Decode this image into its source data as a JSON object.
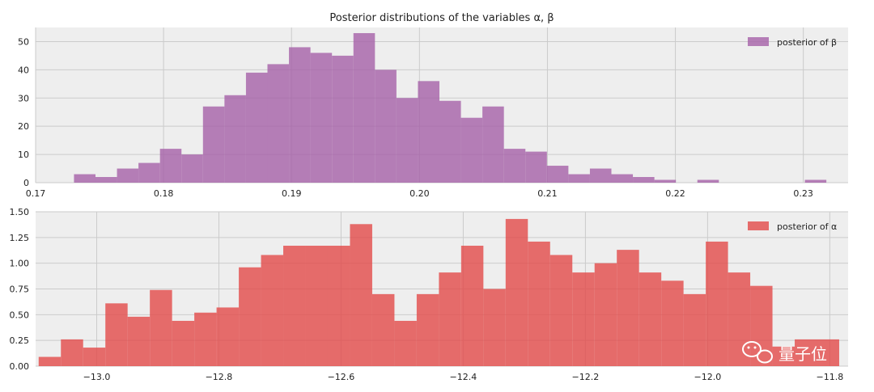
{
  "chart_data": [
    {
      "type": "bar",
      "title": "Posterior distributions of the variables α, β",
      "legend": {
        "label": "posterior of β",
        "placement": "upper-right"
      },
      "color": "#A560A8",
      "xlim": [
        0.17,
        0.2335
      ],
      "ylim": [
        0,
        55
      ],
      "xticks": [
        0.17,
        0.18,
        0.19,
        0.2,
        0.21,
        0.22,
        0.23
      ],
      "xtick_labels": [
        "0.17",
        "0.18",
        "0.19",
        "0.20",
        "0.21",
        "0.22",
        "0.23"
      ],
      "yticks": [
        0,
        10,
        20,
        30,
        40,
        50
      ],
      "ytick_labels": [
        "0",
        "10",
        "20",
        "30",
        "40",
        "50"
      ],
      "grid": true,
      "bin_start": 0.173,
      "bin_width": 0.00168,
      "values": [
        3,
        2,
        5,
        7,
        12,
        10,
        27,
        31,
        39,
        42,
        48,
        46,
        45,
        53,
        40,
        30,
        36,
        29,
        23,
        27,
        12,
        11,
        6,
        3,
        5,
        3,
        2,
        1,
        0,
        1,
        0,
        0,
        0,
        0,
        1
      ]
    },
    {
      "type": "bar",
      "legend": {
        "label": "posterior of α",
        "placement": "upper-right"
      },
      "color": "#E24A48",
      "xlim": [
        -13.1,
        -11.77
      ],
      "ylim": [
        0,
        1.5
      ],
      "xticks": [
        -13.0,
        -12.8,
        -12.6,
        -12.4,
        -12.2,
        -12.0,
        -11.8
      ],
      "xtick_labels": [
        "−13.0",
        "−12.8",
        "−12.6",
        "−12.4",
        "−12.2",
        "−12.0",
        "−11.8"
      ],
      "yticks": [
        0,
        0.25,
        0.5,
        0.75,
        1.0,
        1.25,
        1.5
      ],
      "ytick_labels": [
        "0.00",
        "0.25",
        "0.50",
        "0.75",
        "1.00",
        "1.25",
        "1.50"
      ],
      "grid": true,
      "bin_start": -13.095,
      "bin_width": 0.0364,
      "values": [
        0.09,
        0.26,
        0.18,
        0.61,
        0.48,
        0.74,
        0.44,
        0.52,
        0.57,
        0.96,
        1.08,
        1.17,
        1.17,
        1.17,
        1.38,
        0.7,
        0.44,
        0.7,
        0.91,
        1.17,
        0.75,
        1.43,
        1.21,
        1.08,
        0.91,
        1.0,
        1.13,
        0.91,
        0.83,
        0.7,
        1.21,
        0.91,
        0.78,
        0.19,
        0.26,
        0.26
      ]
    }
  ],
  "watermark": {
    "text": "量子位",
    "icon": "wechat-icon"
  }
}
